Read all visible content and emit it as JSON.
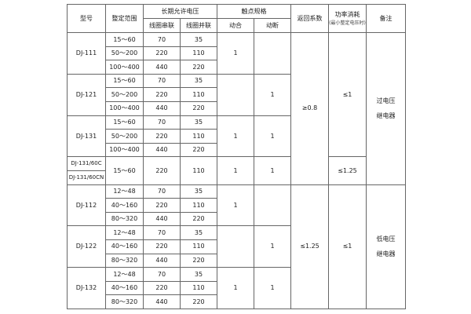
{
  "header": {
    "model": "型号",
    "range": "整定范围",
    "voltage": "长期允许电压",
    "series": "线圈串联",
    "parallel": "线圈并联",
    "contact": "触点规格",
    "no": "动合",
    "nc": "动断",
    "return": "返回系数",
    "power": "功率消耗",
    "power_note": "(最小整定电压时)",
    "remark": "备注"
  },
  "groups": [
    {
      "model": "DJ-111",
      "rows": [
        [
          "15～60",
          "70",
          "35"
        ],
        [
          "50～200",
          "220",
          "110"
        ],
        [
          "100～400",
          "440",
          "220"
        ]
      ],
      "no": "1",
      "nc": ""
    },
    {
      "model": "DJ-121",
      "rows": [
        [
          "15～60",
          "70",
          "35"
        ],
        [
          "50～200",
          "220",
          "110"
        ],
        [
          "100～400",
          "440",
          "220"
        ]
      ],
      "no": "",
      "nc": "1"
    },
    {
      "model": "DJ-131",
      "rows": [
        [
          "15～60",
          "70",
          "35"
        ],
        [
          "50～200",
          "220",
          "110"
        ],
        [
          "100～400",
          "440",
          "220"
        ]
      ],
      "no": "1",
      "nc": "1"
    },
    {
      "models": [
        "DJ-131/60C",
        "DJ-131/60CN"
      ],
      "range": "15～60",
      "series": "220",
      "parallel": "110",
      "no": "1",
      "nc": "1"
    },
    {
      "model": "DJ-112",
      "rows": [
        [
          "12～48",
          "70",
          "35"
        ],
        [
          "40～160",
          "220",
          "110"
        ],
        [
          "80～320",
          "440",
          "220"
        ]
      ],
      "no": "1",
      "nc": ""
    },
    {
      "model": "DJ-122",
      "rows": [
        [
          "12～48",
          "70",
          "35"
        ],
        [
          "40～160",
          "220",
          "110"
        ],
        [
          "80～320",
          "440",
          "220"
        ]
      ],
      "no": "",
      "nc": "1"
    },
    {
      "model": "DJ-132",
      "rows": [
        [
          "12～48",
          "70",
          "35"
        ],
        [
          "40～160",
          "220",
          "110"
        ],
        [
          "80～320",
          "440",
          "220"
        ]
      ],
      "no": "1",
      "nc": "1"
    }
  ],
  "over": {
    "return": "≥0.8",
    "power_a": "≤1",
    "power_b": "≤1.25",
    "remark_1": "过电压",
    "remark_2": "继电器"
  },
  "under": {
    "return": "≤1.25",
    "power": "≤1",
    "remark_1": "低电压",
    "remark_2": "继电器"
  }
}
